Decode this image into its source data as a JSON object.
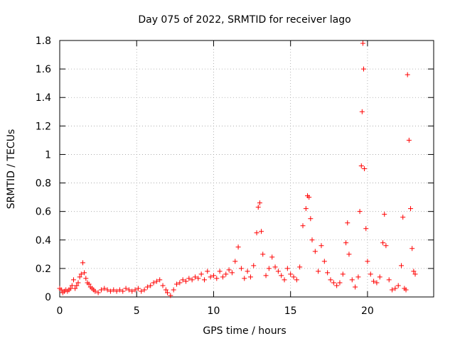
{
  "chart_data": {
    "type": "scatter",
    "title": "Day 075 of 2022, SRMTID for receiver lago",
    "xlabel": "GPS time / hours",
    "ylabel": "SRMTID / TECUs",
    "xlim": [
      0,
      24.3
    ],
    "ylim": [
      0,
      1.8
    ],
    "x_ticks": [
      0,
      5,
      10,
      15,
      20
    ],
    "x_tick_labels": [
      "0",
      "5",
      "10",
      "15",
      "20"
    ],
    "y_ticks": [
      0,
      0.2,
      0.4,
      0.6,
      0.8,
      1.0,
      1.2,
      1.4,
      1.6,
      1.8
    ],
    "y_tick_labels": [
      "0",
      "0.2",
      "0.4",
      "0.6",
      "0.8",
      "1",
      "1.2",
      "1.4",
      "1.6",
      "1.8"
    ],
    "grid": true,
    "marker": "+",
    "color": "#ff0000",
    "series": [
      {
        "name": "SRMTID",
        "points": [
          [
            0.0,
            0.06
          ],
          [
            0.1,
            0.05
          ],
          [
            0.2,
            0.03
          ],
          [
            0.3,
            0.04
          ],
          [
            0.4,
            0.05
          ],
          [
            0.5,
            0.04
          ],
          [
            0.6,
            0.05
          ],
          [
            0.7,
            0.06
          ],
          [
            0.8,
            0.08
          ],
          [
            0.9,
            0.12
          ],
          [
            1.0,
            0.06
          ],
          [
            1.1,
            0.08
          ],
          [
            1.2,
            0.1
          ],
          [
            1.3,
            0.14
          ],
          [
            1.4,
            0.16
          ],
          [
            1.5,
            0.24
          ],
          [
            1.6,
            0.17
          ],
          [
            1.7,
            0.13
          ],
          [
            1.8,
            0.1
          ],
          [
            1.9,
            0.09
          ],
          [
            2.0,
            0.07
          ],
          [
            2.1,
            0.06
          ],
          [
            2.2,
            0.05
          ],
          [
            2.3,
            0.04
          ],
          [
            2.5,
            0.03
          ],
          [
            2.7,
            0.05
          ],
          [
            2.9,
            0.06
          ],
          [
            3.1,
            0.05
          ],
          [
            3.3,
            0.04
          ],
          [
            3.5,
            0.05
          ],
          [
            3.7,
            0.04
          ],
          [
            3.9,
            0.05
          ],
          [
            4.1,
            0.04
          ],
          [
            4.3,
            0.06
          ],
          [
            4.5,
            0.05
          ],
          [
            4.7,
            0.04
          ],
          [
            4.9,
            0.05
          ],
          [
            5.1,
            0.06
          ],
          [
            5.3,
            0.04
          ],
          [
            5.5,
            0.05
          ],
          [
            5.7,
            0.07
          ],
          [
            5.9,
            0.08
          ],
          [
            6.1,
            0.1
          ],
          [
            6.3,
            0.11
          ],
          [
            6.5,
            0.12
          ],
          [
            6.7,
            0.08
          ],
          [
            6.9,
            0.05
          ],
          [
            7.0,
            0.03
          ],
          [
            7.2,
            0.01
          ],
          [
            7.4,
            0.05
          ],
          [
            7.6,
            0.09
          ],
          [
            7.8,
            0.1
          ],
          [
            8.0,
            0.12
          ],
          [
            8.2,
            0.11
          ],
          [
            8.4,
            0.13
          ],
          [
            8.6,
            0.12
          ],
          [
            8.8,
            0.14
          ],
          [
            9.0,
            0.13
          ],
          [
            9.2,
            0.16
          ],
          [
            9.4,
            0.12
          ],
          [
            9.6,
            0.18
          ],
          [
            9.8,
            0.14
          ],
          [
            10.0,
            0.15
          ],
          [
            10.2,
            0.13
          ],
          [
            10.4,
            0.18
          ],
          [
            10.6,
            0.14
          ],
          [
            10.8,
            0.16
          ],
          [
            11.0,
            0.19
          ],
          [
            11.2,
            0.17
          ],
          [
            11.4,
            0.25
          ],
          [
            11.6,
            0.35
          ],
          [
            11.8,
            0.2
          ],
          [
            12.0,
            0.13
          ],
          [
            12.2,
            0.18
          ],
          [
            12.4,
            0.14
          ],
          [
            12.6,
            0.22
          ],
          [
            12.8,
            0.45
          ],
          [
            12.9,
            0.63
          ],
          [
            13.0,
            0.66
          ],
          [
            13.1,
            0.46
          ],
          [
            13.2,
            0.3
          ],
          [
            13.4,
            0.15
          ],
          [
            13.6,
            0.2
          ],
          [
            13.8,
            0.28
          ],
          [
            14.0,
            0.21
          ],
          [
            14.2,
            0.18
          ],
          [
            14.4,
            0.15
          ],
          [
            14.6,
            0.12
          ],
          [
            14.8,
            0.2
          ],
          [
            15.0,
            0.16
          ],
          [
            15.2,
            0.14
          ],
          [
            15.4,
            0.12
          ],
          [
            15.6,
            0.21
          ],
          [
            15.8,
            0.5
          ],
          [
            16.0,
            0.62
          ],
          [
            16.1,
            0.71
          ],
          [
            16.2,
            0.7
          ],
          [
            16.3,
            0.55
          ],
          [
            16.4,
            0.4
          ],
          [
            16.6,
            0.32
          ],
          [
            16.8,
            0.18
          ],
          [
            17.0,
            0.36
          ],
          [
            17.2,
            0.25
          ],
          [
            17.4,
            0.17
          ],
          [
            17.6,
            0.12
          ],
          [
            17.8,
            0.1
          ],
          [
            18.0,
            0.08
          ],
          [
            18.2,
            0.1
          ],
          [
            18.4,
            0.16
          ],
          [
            18.6,
            0.38
          ],
          [
            18.7,
            0.52
          ],
          [
            18.8,
            0.3
          ],
          [
            19.0,
            0.12
          ],
          [
            19.2,
            0.07
          ],
          [
            19.4,
            0.14
          ],
          [
            19.5,
            0.6
          ],
          [
            19.6,
            0.92
          ],
          [
            19.65,
            1.3
          ],
          [
            19.7,
            1.78
          ],
          [
            19.75,
            1.6
          ],
          [
            19.8,
            0.9
          ],
          [
            19.9,
            0.48
          ],
          [
            20.0,
            0.25
          ],
          [
            20.2,
            0.16
          ],
          [
            20.4,
            0.11
          ],
          [
            20.6,
            0.1
          ],
          [
            20.8,
            0.14
          ],
          [
            21.0,
            0.38
          ],
          [
            21.1,
            0.58
          ],
          [
            21.2,
            0.36
          ],
          [
            21.4,
            0.12
          ],
          [
            21.6,
            0.05
          ],
          [
            21.8,
            0.06
          ],
          [
            22.0,
            0.08
          ],
          [
            22.2,
            0.22
          ],
          [
            22.3,
            0.56
          ],
          [
            22.4,
            0.06
          ],
          [
            22.5,
            0.05
          ],
          [
            22.6,
            1.56
          ],
          [
            22.7,
            1.1
          ],
          [
            22.8,
            0.62
          ],
          [
            22.9,
            0.34
          ],
          [
            23.0,
            0.18
          ],
          [
            23.1,
            0.16
          ]
        ]
      }
    ]
  }
}
